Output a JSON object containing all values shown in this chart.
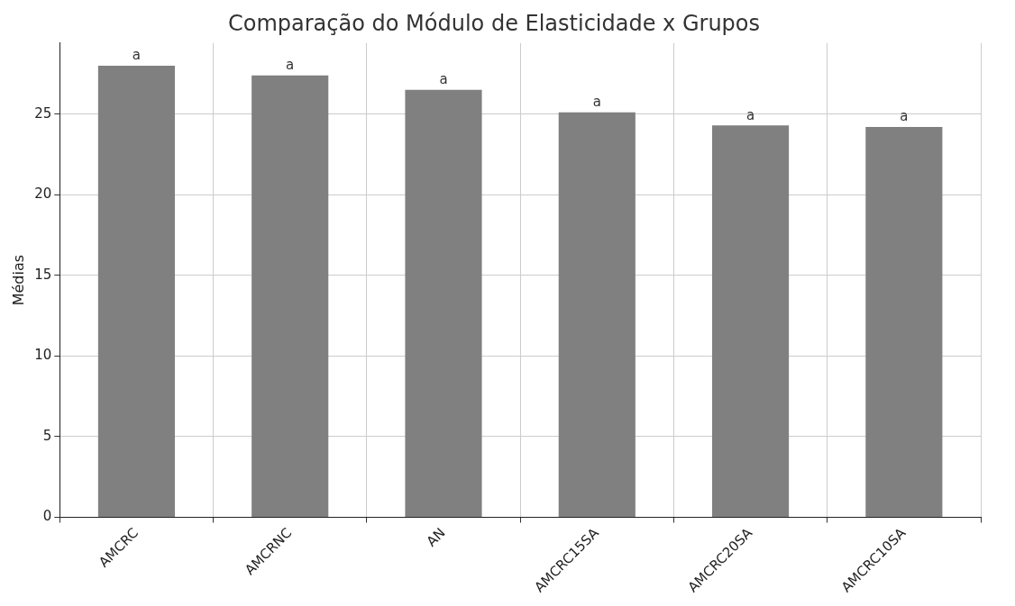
{
  "chart_data": {
    "type": "bar",
    "title": "Comparação do Módulo de Elasticidade x Grupos",
    "ylabel": "Médias",
    "categories": [
      "AMCRC",
      "AMCRNC",
      "AN",
      "AMCRC15SA",
      "AMCRC20SA",
      "AMCRC10SA"
    ],
    "values": [
      28.0,
      27.4,
      26.5,
      25.1,
      24.3,
      24.2
    ],
    "color": "#808080",
    "ylim": [
      0,
      29.4
    ],
    "yticks": [
      0,
      5,
      10,
      15,
      20,
      25
    ],
    "grid": true,
    "legend": false,
    "annotations": [
      {
        "text": "a",
        "x": "AMCRC",
        "y": 28.0
      },
      {
        "text": "a",
        "x": "AMCRNC",
        "y": 27.4
      },
      {
        "text": "a",
        "x": "AN",
        "y": 26.5
      },
      {
        "text": "a",
        "x": "AMCRC15SA",
        "y": 25.1
      },
      {
        "text": "a",
        "x": "AMCRC20SA",
        "y": 24.3
      },
      {
        "text": "a",
        "x": "AMCRC10SA",
        "y": 24.2
      }
    ]
  }
}
